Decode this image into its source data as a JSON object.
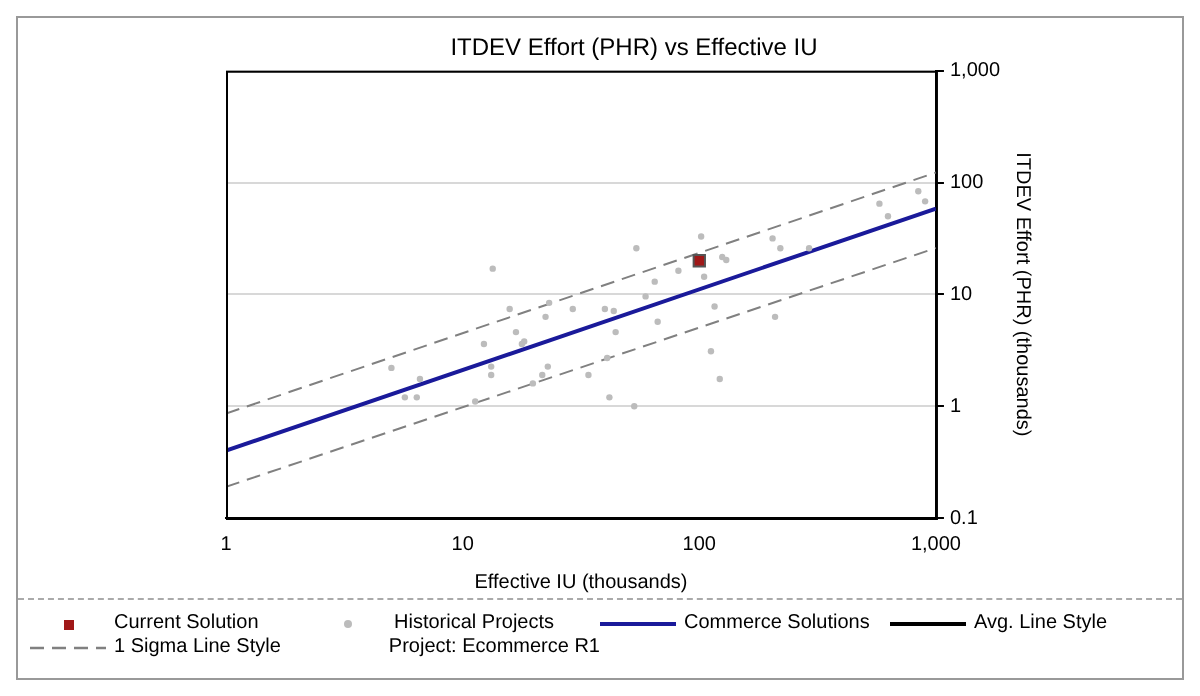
{
  "chart_data": {
    "type": "scatter",
    "title": "ITDEV Effort (PHR) vs Effective IU",
    "xlabel": "Effective IU (thousands)",
    "ylabel": "ITDEV Effort (PHR) (thousands)",
    "log": "xy",
    "grid": "y",
    "legend": "bottom",
    "xlim": [
      1,
      1000
    ],
    "xticks": [
      1,
      10,
      100,
      {
        "value": 1000,
        "label": "1,000"
      }
    ],
    "ylim": [
      0.1,
      1000
    ],
    "yticks": [
      0.1,
      1,
      10,
      100,
      {
        "value": 1000,
        "label": "1,000"
      }
    ],
    "series": [
      {
        "name": "Current Solution",
        "marker": "square",
        "color": "#a01818",
        "x": [
          100
        ],
        "values": [
          20
        ]
      },
      {
        "name": "Historical Projects",
        "marker": "circle",
        "color": "#bcbcbc",
        "x": [
          5.0,
          5.7,
          6.4,
          6.6,
          11.3,
          12.3,
          13.4,
          13.2,
          13.2,
          15.8,
          16.8,
          17.8,
          18.2,
          19.8,
          21.7,
          22.4,
          22.9,
          23.2,
          29.2,
          34,
          39.9,
          40.8,
          41.7,
          43.5,
          44.3,
          53.1,
          54.2,
          59.3,
          64.8,
          66.7,
          81.6,
          101.8,
          104.8,
          112,
          116,
          122,
          125,
          130,
          204,
          209,
          220,
          291,
          577,
          627,
          842,
          900
        ],
        "values": [
          2.2,
          1.2,
          1.2,
          1.75,
          1.1,
          3.6,
          17,
          2.26,
          1.9,
          7.4,
          4.6,
          3.6,
          3.8,
          1.6,
          1.9,
          6.3,
          2.26,
          8.4,
          7.4,
          1.9,
          7.4,
          2.7,
          1.2,
          7.1,
          4.6,
          1.0,
          25.9,
          9.6,
          13,
          5.7,
          16.3,
          33,
          14.4,
          3.1,
          7.8,
          1.75,
          21.6,
          20.3,
          31.7,
          6.3,
          25.9,
          25.9,
          64.8,
          50,
          83.6,
          68
        ]
      },
      {
        "name": "Commerce Solutions",
        "type": "line",
        "line_style": "solid",
        "color": "#1a1a9a",
        "x": [
          1,
          1000
        ],
        "values": [
          0.4,
          58.5
        ]
      },
      {
        "name": "Avg. Line Style",
        "type": "line",
        "line_style": "solid",
        "color": "#000000"
      },
      {
        "name": "1 Sigma Line Style",
        "type": "line",
        "line_style": "dashed",
        "color": "#808080",
        "x": [
          1,
          1000
        ],
        "values": [
          0.86,
          123
        ]
      },
      {
        "type": "line",
        "line_style": "dashed",
        "color": "#808080",
        "x": [
          1,
          1000
        ],
        "values": [
          0.19,
          26
        ]
      }
    ],
    "annotations": [
      "Project: Ecommerce R1"
    ]
  }
}
